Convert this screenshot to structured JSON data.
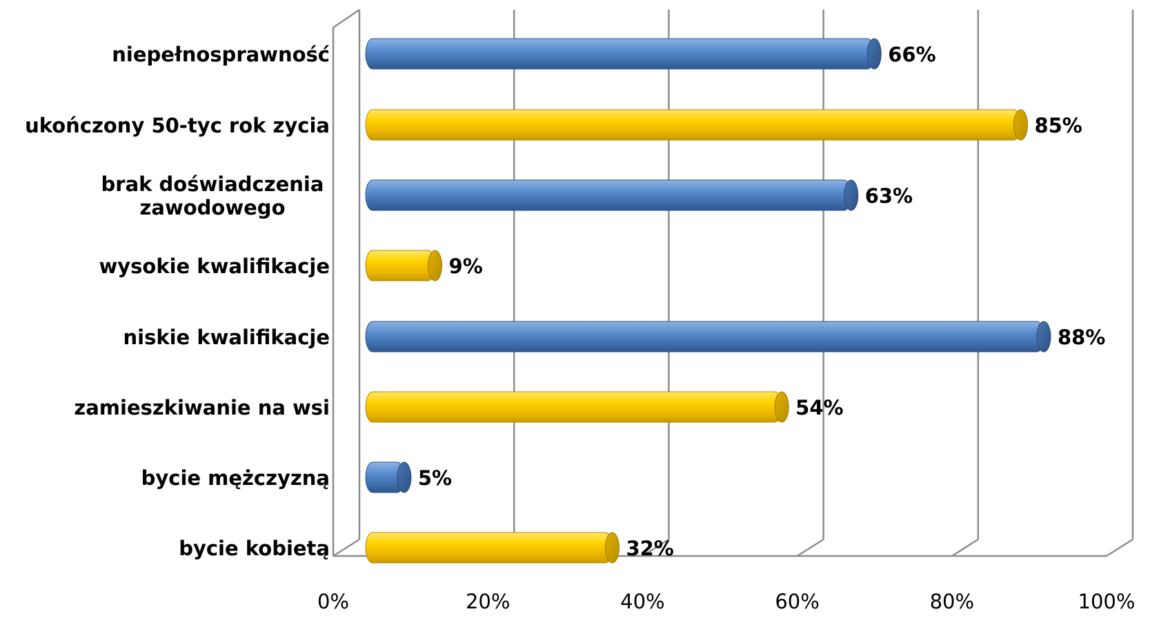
{
  "chart_data": {
    "type": "bar",
    "orientation": "horizontal",
    "style": "3d-cylinder",
    "categories": [
      "niepełnosprawność",
      "ukończony 50-tyc rok zycia",
      "brak doświadczenia zawodowego",
      "wysokie kwalifikacje",
      "niskie kwalifikacje",
      "zamieszkiwanie na wsi",
      "bycie mężczyzną",
      "bycie kobietą"
    ],
    "category_lines": [
      [
        "niepełnosprawność"
      ],
      [
        "ukończony 50-tyc rok zycia"
      ],
      [
        "brak doświadczenia",
        "zawodowego"
      ],
      [
        "wysokie kwalifikacje"
      ],
      [
        "niskie kwalifikacje"
      ],
      [
        "zamieszkiwanie na wsi"
      ],
      [
        "bycie mężczyzną"
      ],
      [
        "bycie kobietą"
      ]
    ],
    "values": [
      66,
      85,
      63,
      9,
      88,
      54,
      5,
      32
    ],
    "value_labels": [
      "66%",
      "85%",
      "63%",
      "9%",
      "88%",
      "54%",
      "5%",
      "32%"
    ],
    "bar_colors": [
      "blue",
      "yellow",
      "blue",
      "yellow",
      "blue",
      "yellow",
      "blue",
      "yellow"
    ],
    "colors": {
      "blue": "#4F81BD",
      "yellow": "#FFCC00",
      "grid": "#8C8C8C"
    },
    "xlim": [
      0,
      100
    ],
    "x_ticks": [
      0,
      20,
      40,
      60,
      80,
      100
    ],
    "x_tick_labels": [
      "0%",
      "20%",
      "40%",
      "60%",
      "80%",
      "100%"
    ],
    "grid": true,
    "legend": "none",
    "title": "",
    "xlabel": "",
    "ylabel": ""
  }
}
